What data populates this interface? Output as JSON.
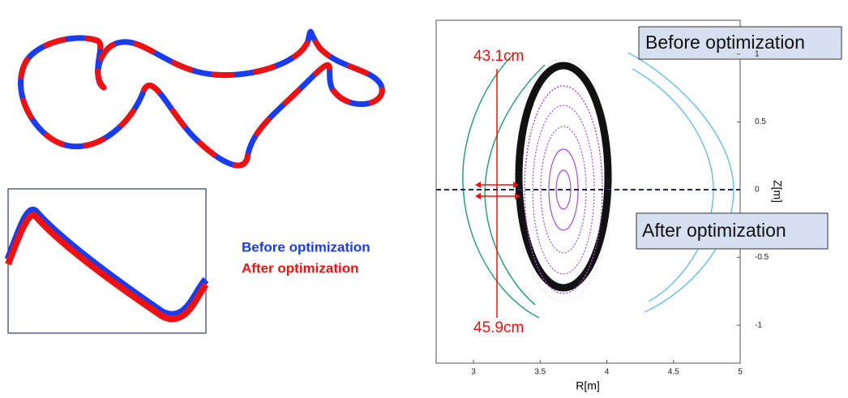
{
  "chart_data": {
    "type": "poincare",
    "xlabel": "R[m]",
    "ylabel": "Z[m]",
    "xlim": [
      2.72,
      5
    ],
    "ylim": [
      -1.28,
      1.25
    ],
    "xticks": [
      3,
      3.5,
      4,
      4.5,
      5
    ],
    "yticks": [
      -1,
      -0.5,
      0,
      0.5,
      1
    ],
    "annotations": {
      "top_box": "Before optimization",
      "bottom_box": "After optimization",
      "upper_gap": "43.1cm",
      "lower_gap": "45.9cm"
    },
    "legend": [
      {
        "name": "Before optimization",
        "color": "#1a3cf0"
      },
      {
        "name": "After optimization",
        "color": "#ee1111"
      }
    ]
  }
}
